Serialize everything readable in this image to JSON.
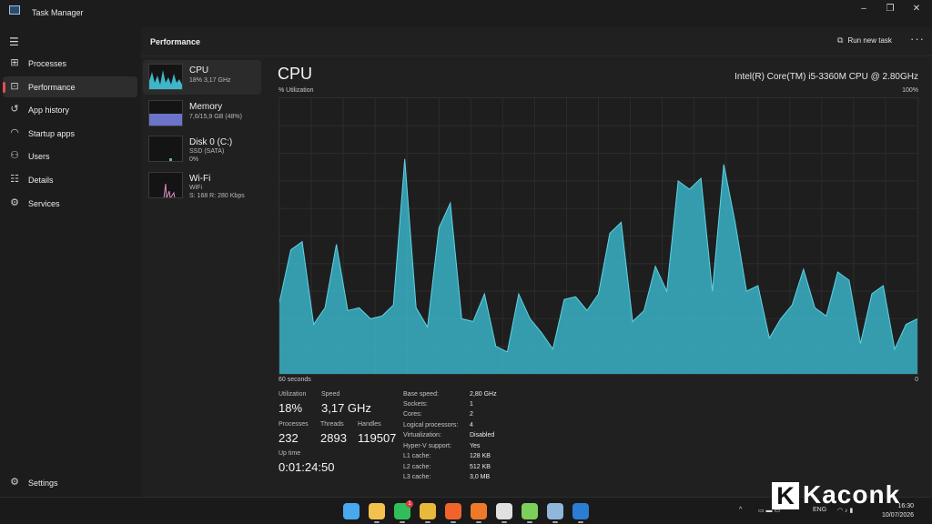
{
  "window": {
    "title": "Task Manager",
    "minimize": "–",
    "maximize": "❐",
    "close": "✕"
  },
  "nav": {
    "menu_icon": "hamburger-icon",
    "items": [
      {
        "label": "Processes",
        "icon": "processes-icon"
      },
      {
        "label": "Performance",
        "icon": "performance-icon",
        "active": true
      },
      {
        "label": "App history",
        "icon": "history-icon"
      },
      {
        "label": "Startup apps",
        "icon": "startup-icon"
      },
      {
        "label": "Users",
        "icon": "users-icon"
      },
      {
        "label": "Details",
        "icon": "details-icon"
      },
      {
        "label": "Services",
        "icon": "services-icon"
      }
    ],
    "settings": "Settings"
  },
  "header": {
    "title": "Performance",
    "run_new_task": "Run new task",
    "more": "···"
  },
  "devices": [
    {
      "name": "CPU",
      "line1": "18% 3,17 GHz",
      "line2": "",
      "color": "#3fb6c8"
    },
    {
      "name": "Memory",
      "line1": "7,6/15,9 GB (48%)",
      "line2": "",
      "color": "#6b74c9"
    },
    {
      "name": "Disk 0 (C:)",
      "line1": "SSD (SATA)",
      "line2": "0%",
      "color": "#5fbf78"
    },
    {
      "name": "Wi-Fi",
      "line1": "WiFi",
      "line2": "S: 168 R: 280 Kbps",
      "color": "#d98ec2"
    }
  ],
  "cpu": {
    "title": "CPU",
    "model": "Intel(R) Core(TM) i5-3360M CPU @ 2.80GHz",
    "util_label": "% Utilization",
    "max_label": "100%",
    "x_left": "60 seconds",
    "x_right": "0",
    "accent": "#3ab3c7",
    "stats": {
      "utilization_label": "Utilization",
      "utilization": "18%",
      "speed_label": "Speed",
      "speed": "3,17 GHz",
      "processes_label": "Processes",
      "processes": "232",
      "threads_label": "Threads",
      "threads": "2893",
      "handles_label": "Handles",
      "handles": "119507",
      "uptime_label": "Up time",
      "uptime": "0:01:24:50"
    },
    "specs": [
      {
        "k": "Base speed:",
        "v": "2,80 GHz"
      },
      {
        "k": "Sockets:",
        "v": "1"
      },
      {
        "k": "Cores:",
        "v": "2"
      },
      {
        "k": "Logical processors:",
        "v": "4"
      },
      {
        "k": "Virtualization:",
        "v": "Disabled"
      },
      {
        "k": "Hyper-V support:",
        "v": "Yes"
      },
      {
        "k": "L1 cache:",
        "v": "128 KB"
      },
      {
        "k": "L2 cache:",
        "v": "512 KB"
      },
      {
        "k": "L3 cache:",
        "v": "3,0 MB"
      }
    ]
  },
  "chart_data": {
    "type": "area",
    "title": "CPU",
    "xlabel": "",
    "ylabel": "% Utilization",
    "xlim": [
      60,
      0
    ],
    "ylim": [
      0,
      100
    ],
    "grid": true,
    "values": [
      26,
      45,
      48,
      18,
      24,
      47,
      23,
      24,
      20,
      21,
      25,
      78,
      24,
      17,
      53,
      62,
      20,
      19,
      29,
      10,
      8,
      29,
      20,
      15,
      9,
      27,
      28,
      23,
      29,
      51,
      55,
      19,
      23,
      39,
      30,
      70,
      67,
      71,
      30,
      76,
      55,
      30,
      32,
      13,
      20,
      25,
      38,
      24,
      21,
      37,
      34,
      11,
      29,
      32,
      9,
      18,
      20
    ]
  },
  "watermark": {
    "k": "K",
    "text": "Kaconk"
  },
  "taskbar": {
    "apps": [
      {
        "name": "windows-start",
        "color": "#4aa8f0"
      },
      {
        "name": "file-explorer",
        "color": "#f2c14e"
      },
      {
        "name": "whatsapp",
        "color": "#2fbf5a",
        "badge": "1"
      },
      {
        "name": "chrome",
        "color": "#e9b93a"
      },
      {
        "name": "brave",
        "color": "#f0642c"
      },
      {
        "name": "firefox",
        "color": "#ee7a29"
      },
      {
        "name": "media-player",
        "color": "#e0e0e0"
      },
      {
        "name": "sublime-like",
        "color": "#7bcf5a"
      },
      {
        "name": "task-manager",
        "color": "#8fb7d9"
      },
      {
        "name": "outlook",
        "color": "#2b7cd3"
      }
    ],
    "tray": {
      "chevron": "^",
      "lang": "ENG",
      "time": "16:30",
      "date": "10/07/2026"
    }
  }
}
